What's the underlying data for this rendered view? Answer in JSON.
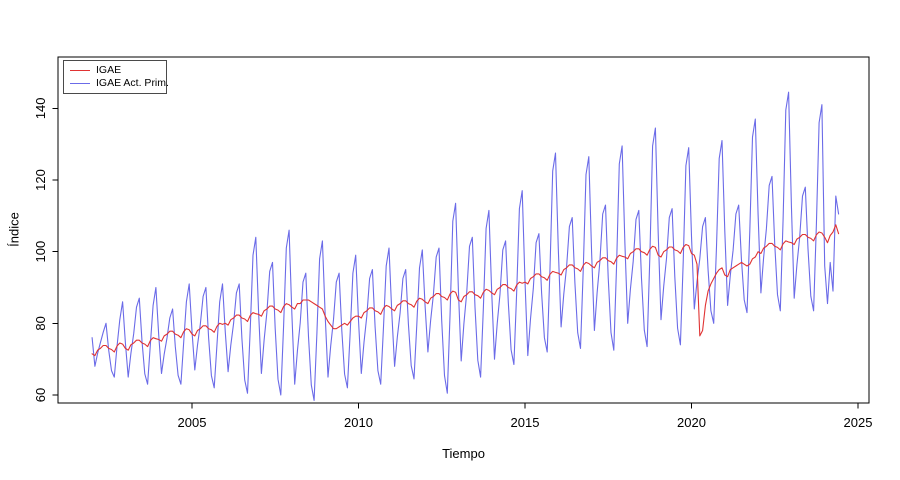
{
  "figure": {
    "background": "#ffffff",
    "axes": {
      "x_label": "Tiempo",
      "y_label": "Índice",
      "x_ticks": [
        2005,
        2010,
        2015,
        2020,
        2025
      ],
      "y_ticks": [
        60,
        80,
        100,
        120,
        140
      ],
      "axis_color": "#000000"
    },
    "legend": {
      "position": "topleft",
      "items": [
        {
          "label": "IGAE",
          "color": "#e03333"
        },
        {
          "label": "IGAE Act. Prim.",
          "color": "#6b6be8"
        }
      ]
    }
  },
  "chart_data": {
    "type": "line",
    "title": "",
    "xlabel": "Tiempo",
    "ylabel": "Índice",
    "frequency": "monthly",
    "x_start": 2002.0,
    "x_step_years": 0.0833333,
    "xlim": [
      2001.0,
      2025.3
    ],
    "ylim": [
      55.5,
      157.0
    ],
    "x_tick_labels": [
      2005,
      2010,
      2015,
      2020,
      2025
    ],
    "y_tick_labels": [
      60,
      80,
      100,
      120,
      140
    ],
    "grid": false,
    "legend_position": "topleft",
    "series": [
      {
        "name": "IGAE",
        "color": "#e03333",
        "values": [
          71.5,
          71,
          72.5,
          73,
          73.8,
          73.8,
          73,
          72.7,
          72,
          73.7,
          74.5,
          74.2,
          73,
          72.5,
          74,
          74.5,
          75.3,
          75.3,
          74.5,
          74.2,
          73.5,
          75.2,
          76,
          75.7,
          75.5,
          75,
          76.5,
          77,
          77.8,
          77.8,
          77,
          76.7,
          76,
          77.7,
          78.5,
          78.2,
          77,
          76.5,
          78,
          78.5,
          79.3,
          79.3,
          78.5,
          78.2,
          77.5,
          79.2,
          80,
          79.7,
          80,
          79.5,
          81,
          81.5,
          82.3,
          82.3,
          81.5,
          81.2,
          80.5,
          82.2,
          83,
          82.7,
          82.5,
          82,
          83.5,
          84,
          84.8,
          84.8,
          84,
          83.7,
          83,
          84.7,
          85.5,
          85.2,
          84.5,
          84,
          85.5,
          85.5,
          86.5,
          86.5,
          86.5,
          86,
          85.5,
          85,
          84.5,
          84,
          82,
          80.5,
          79.5,
          78.5,
          78.5,
          79,
          79.5,
          80,
          79.5,
          80.5,
          81.5,
          82,
          82,
          81.5,
          83,
          83.5,
          84.3,
          84.3,
          83.5,
          83.2,
          82.5,
          84.2,
          85,
          84.7,
          84,
          83.5,
          85,
          85.5,
          86.3,
          86.3,
          85.5,
          85.2,
          84.5,
          86.2,
          87,
          86.7,
          86,
          85.5,
          87,
          87.5,
          88.3,
          88.3,
          87.5,
          87.2,
          86.5,
          88.2,
          89,
          88.7,
          86.5,
          86,
          87.5,
          88,
          88.8,
          88.8,
          88,
          87.7,
          87,
          88.7,
          89.5,
          89.2,
          88.5,
          88,
          89.5,
          90,
          90.8,
          90.8,
          90,
          89.7,
          89,
          90.7,
          91.5,
          91.2,
          91.5,
          91,
          92.5,
          93,
          93.8,
          93.8,
          93,
          92.7,
          92,
          93.7,
          94.5,
          94.2,
          94,
          93.5,
          95,
          95.5,
          96.3,
          96.3,
          95.5,
          95.2,
          94.5,
          96.2,
          97,
          96.7,
          96,
          95.5,
          97,
          97.5,
          98.3,
          98.3,
          97.5,
          97.2,
          96.5,
          98.2,
          99,
          98.7,
          98.5,
          98,
          99.5,
          100,
          100.8,
          100.8,
          100,
          99.7,
          99,
          100.7,
          101.5,
          101.2,
          99,
          98.5,
          100,
          100.5,
          101.3,
          101.3,
          100.5,
          100.2,
          99.5,
          101.2,
          102,
          101.7,
          99.5,
          99,
          96.5,
          76.5,
          78,
          85,
          89,
          91,
          92.5,
          94,
          95,
          95.5,
          93.5,
          93,
          95,
          95.5,
          96,
          96.5,
          97,
          96.5,
          96,
          96.5,
          98,
          98.5,
          100,
          99.5,
          101,
          101.5,
          102.3,
          102.3,
          101.5,
          101.2,
          100.5,
          102.2,
          103,
          102.7,
          102.5,
          102,
          103.5,
          104,
          104.8,
          104.8,
          104,
          103.7,
          103,
          104.7,
          105.5,
          105.2,
          104,
          102.5,
          104.5,
          105.5,
          107.5,
          105
        ]
      },
      {
        "name": "IGAE Act. Prim.",
        "color": "#6b6be8",
        "values": [
          76,
          68,
          71.6,
          74.6,
          77.5,
          80,
          72.5,
          66.8,
          65,
          73.8,
          81,
          86,
          74.5,
          65,
          71.6,
          77.1,
          84.5,
          87,
          75,
          65.9,
          63,
          74.3,
          85,
          90,
          76.8,
          66,
          71.4,
          75.9,
          81.5,
          84,
          73.5,
          65.5,
          63,
          74.8,
          86,
          91,
          77.8,
          67,
          73.9,
          79.7,
          87.5,
          90,
          76,
          65.4,
          62,
          74.2,
          86,
          91,
          77.5,
          66.5,
          73.9,
          80,
          88.5,
          91,
          75.8,
          64.2,
          60.5,
          78.8,
          99,
          104,
          83.1,
          66,
          75.3,
          83.1,
          94.5,
          97,
          78.5,
          64.4,
          60,
          79.3,
          101,
          106,
          82.4,
          63,
          72.3,
          80.1,
          91.5,
          94,
          76.3,
          62.8,
          58.5,
          77.2,
          98,
          103,
          82.1,
          65,
          73.7,
          81,
          91.5,
          94,
          78,
          65.8,
          62,
          77.5,
          94,
          99,
          80.9,
          66,
          74.7,
          82,
          92.5,
          95,
          79,
          66.8,
          63,
          79,
          96,
          101,
          82.9,
          68,
          76.1,
          82.9,
          92.5,
          95,
          79.8,
          68.2,
          64.5,
          79.6,
          95.5,
          100.5,
          84.8,
          72,
          80.7,
          88,
          98.5,
          101,
          80.8,
          65.4,
          60.5,
          82.8,
          108.5,
          113.5,
          89.3,
          69.5,
          79.9,
          88.5,
          101.5,
          104,
          84.5,
          69.7,
          65,
          84.5,
          106.5,
          111.5,
          88.7,
          70,
          79.9,
          88.2,
          100.5,
          103,
          85.8,
          72.6,
          68.5,
          88.9,
          112,
          117,
          91.7,
          71,
          81.2,
          89.7,
          102.5,
          105,
          88.5,
          76,
          72,
          95.3,
          122.5,
          127.5,
          100.8,
          79,
          88.2,
          95.8,
          107,
          109.5,
          91.3,
          77.4,
          73,
          95.5,
          121.5,
          126.5,
          99.8,
          78,
          88.5,
          97.3,
          110.5,
          113,
          92.8,
          77.4,
          72.5,
          96.4,
          124.5,
          129.5,
          102.3,
          80,
          89.5,
          97.3,
          109,
          111.5,
          92.5,
          78.1,
          73.5,
          99.1,
          129.5,
          134.5,
          105.1,
          81,
          90.3,
          98.1,
          109.5,
          112,
          93,
          78.6,
          74,
          97.1,
          124,
          129,
          104.3,
          84,
          91.7,
          98,
          107,
          109.5,
          94.8,
          83.5,
          80,
          101.4,
          126,
          131,
          105.7,
          85,
          93.4,
          100.4,
          110.5,
          113,
          98,
          86.6,
          83,
          105.7,
          132,
          137,
          110.3,
          88.5,
          98.3,
          106.4,
          118.5,
          121,
          102.3,
          88,
          83.5,
          109.1,
          139.5,
          144.5,
          112.9,
          87,
          96.3,
          104.1,
          115.5,
          118,
          100.8,
          87.6,
          83.5,
          107.7,
          136,
          141,
          96,
          85.5,
          97,
          89,
          115.5,
          110.5
        ]
      }
    ]
  }
}
